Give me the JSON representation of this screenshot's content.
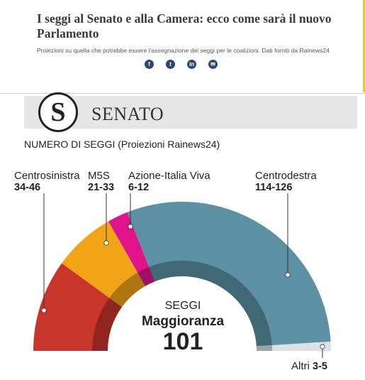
{
  "article": {
    "title": "I seggi al Senato e alla Camera: ecco come sarà il nuovo Parlamento",
    "subtitle": "Proiezioni su quella che potrebbe essere l'assegnazione dei seggi per le coalizioni. Dati forniti da Rainews24",
    "share": [
      {
        "name": "facebook-icon",
        "glyph": "f"
      },
      {
        "name": "twitter-icon",
        "glyph": "t"
      },
      {
        "name": "linkedin-icon",
        "glyph": "in"
      },
      {
        "name": "email-icon",
        "glyph": "✉"
      }
    ]
  },
  "infographic": {
    "banner_title": "SENATO",
    "logo_letter": "S",
    "section_title": "NUMERO DI SEGGI (Proiezioni Rainews24)",
    "center": {
      "label": "SEGGI",
      "majority_label": "Maggioranza",
      "majority_value": "101"
    }
  },
  "chart_data": {
    "type": "pie",
    "shape": "semicircle",
    "title": "NUMERO DI SEGGI (Proiezioni Rainews24)",
    "total_seats": 200,
    "majority": 101,
    "series": [
      {
        "name": "Centrosinistra",
        "range": "34-46",
        "value": 40,
        "color": "#c8352b"
      },
      {
        "name": "M5S",
        "range": "21-33",
        "value": 27,
        "color": "#f2a417"
      },
      {
        "name": "Azione-Italia Viva",
        "range": "6-12",
        "value": 9,
        "color": "#e0148a"
      },
      {
        "name": "Centrodestra",
        "range": "114-126",
        "value": 120,
        "color": "#5b91a3"
      },
      {
        "name": "Altri",
        "range": "3-5",
        "value": 4,
        "color": "#dde1e3"
      }
    ]
  }
}
